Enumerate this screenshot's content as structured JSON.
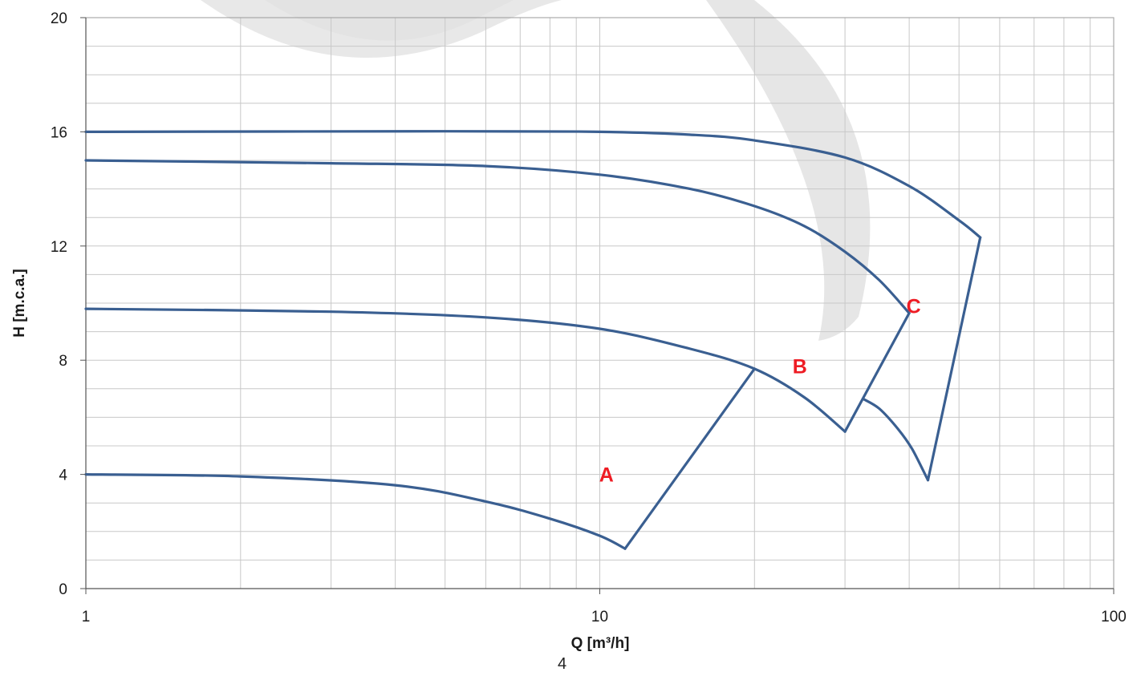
{
  "chart_data": {
    "type": "line",
    "x_scale": "log",
    "xlabel": "Q [m³/h]",
    "ylabel": "H [m.c.a.]",
    "xlim": [
      1,
      100
    ],
    "ylim": [
      0,
      20
    ],
    "x_ticks": [
      "1",
      "10",
      "100"
    ],
    "y_ticks": [
      "0",
      "4",
      "8",
      "12",
      "16",
      "20"
    ],
    "grid": true,
    "line_color": "#3a5f91",
    "series": [
      {
        "x": [
          1,
          2,
          4,
          6,
          8,
          10,
          11.2
        ],
        "y": [
          4.0,
          3.93,
          3.62,
          3.05,
          2.45,
          1.85,
          1.4
        ]
      },
      {
        "x": [
          11.2,
          20
        ],
        "y": [
          1.4,
          7.7
        ]
      },
      {
        "x": [
          1,
          3,
          6,
          10,
          15,
          20,
          25,
          30
        ],
        "y": [
          9.8,
          9.7,
          9.5,
          9.1,
          8.4,
          7.7,
          6.7,
          5.5
        ]
      },
      {
        "x": [
          30,
          40
        ],
        "y": [
          5.5,
          9.65
        ]
      },
      {
        "x": [
          1,
          3,
          6,
          10,
          15,
          20,
          25,
          30,
          35,
          40
        ],
        "y": [
          15.0,
          14.9,
          14.8,
          14.5,
          14.0,
          13.4,
          12.7,
          11.8,
          10.8,
          9.65
        ]
      },
      {
        "x": [
          32.5,
          35,
          38,
          40.5,
          43.5
        ],
        "y": [
          6.65,
          6.3,
          5.6,
          4.9,
          3.8
        ]
      },
      {
        "x": [
          43.5,
          55
        ],
        "y": [
          3.8,
          12.3
        ]
      },
      {
        "x": [
          1,
          5,
          10,
          15,
          20,
          30,
          40,
          50,
          55
        ],
        "y": [
          16.0,
          16.02,
          16.0,
          15.9,
          15.7,
          15.1,
          14.1,
          12.9,
          12.3
        ]
      }
    ],
    "annotations": [
      {
        "text": "A",
        "x": 10.3,
        "y": 4.0,
        "color": "#ee1c24"
      },
      {
        "text": "B",
        "x": 24.5,
        "y": 7.8,
        "color": "#ee1c24"
      },
      {
        "text": "C",
        "x": 40.8,
        "y": 9.9,
        "color": "#ee1c24"
      }
    ]
  },
  "page_number": "4"
}
